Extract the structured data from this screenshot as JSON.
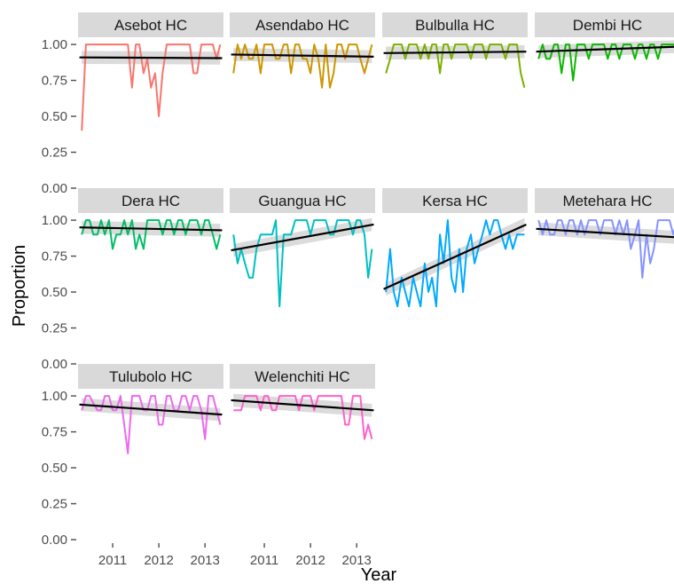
{
  "chart_data": {
    "type": "line",
    "xlabel": "Year",
    "ylabel": "Proportion",
    "x_ticks": [
      2011,
      2012,
      2013
    ],
    "x_tick_labels": [
      "2011",
      "2012",
      "2013"
    ],
    "y_ticks": [
      0,
      0.25,
      0.5,
      0.75,
      1.0
    ],
    "y_tick_labels": [
      "0.00",
      "0.25",
      "0.50",
      "0.75",
      "1.00"
    ],
    "xlim": [
      2010.25,
      2013.4
    ],
    "ylim": [
      0,
      1.05
    ],
    "grid": false,
    "legend": "none",
    "x": [
      2010.33,
      2010.42,
      2010.5,
      2010.58,
      2010.67,
      2010.75,
      2010.83,
      2010.92,
      2011.0,
      2011.08,
      2011.17,
      2011.25,
      2011.33,
      2011.42,
      2011.5,
      2011.58,
      2011.67,
      2011.75,
      2011.83,
      2011.92,
      2012.0,
      2012.08,
      2012.17,
      2012.25,
      2012.33,
      2012.42,
      2012.5,
      2012.58,
      2012.67,
      2012.75,
      2012.83,
      2012.92,
      2013.0,
      2013.08,
      2013.17,
      2013.25,
      2013.33
    ],
    "series": [
      {
        "name": "Asebot HC",
        "color": "#F8766D",
        "values": [
          0.4,
          1.0,
          1.0,
          1.0,
          1.0,
          1.0,
          1.0,
          1.0,
          1.0,
          1.0,
          1.0,
          1.0,
          1.0,
          0.7,
          1.0,
          1.0,
          0.8,
          0.9,
          0.7,
          0.8,
          0.5,
          0.8,
          1.0,
          1.0,
          1.0,
          1.0,
          1.0,
          1.0,
          1.0,
          0.8,
          0.8,
          1.0,
          1.0,
          1.0,
          1.0,
          0.9,
          1.0
        ],
        "trend": [
          0.91,
          0.905
        ]
      },
      {
        "name": "Asendabo HC",
        "color": "#CD9600",
        "values": [
          0.8,
          1.0,
          0.9,
          1.0,
          0.9,
          0.9,
          1.0,
          0.8,
          1.0,
          1.0,
          1.0,
          0.9,
          0.9,
          1.0,
          1.0,
          0.8,
          1.0,
          1.0,
          0.9,
          0.9,
          0.8,
          1.0,
          0.9,
          0.7,
          1.0,
          0.7,
          0.8,
          1.0,
          1.0,
          0.9,
          1.0,
          1.0,
          1.0,
          0.9,
          0.8,
          0.9,
          1.0
        ],
        "trend": [
          0.93,
          0.915
        ]
      },
      {
        "name": "Bulbulla HC",
        "color": "#7CAE00",
        "values": [
          0.8,
          0.9,
          1.0,
          1.0,
          1.0,
          0.9,
          1.0,
          1.0,
          1.0,
          0.9,
          1.0,
          0.9,
          1.0,
          1.0,
          0.8,
          1.0,
          1.0,
          0.9,
          1.0,
          1.0,
          1.0,
          1.0,
          0.9,
          1.0,
          1.0,
          1.0,
          0.9,
          1.0,
          1.0,
          1.0,
          1.0,
          0.9,
          1.0,
          1.0,
          1.0,
          0.8,
          0.7
        ],
        "trend": [
          0.94,
          0.95
        ]
      },
      {
        "name": "Dembi HC",
        "color": "#0CB702",
        "values": [
          0.9,
          1.0,
          0.9,
          0.9,
          1.0,
          1.0,
          0.8,
          1.0,
          1.0,
          0.75,
          1.0,
          1.0,
          1.0,
          0.9,
          1.0,
          1.0,
          1.0,
          1.0,
          0.9,
          1.0,
          1.0,
          0.9,
          1.0,
          1.0,
          1.0,
          0.9,
          1.0,
          1.0,
          0.9,
          1.0,
          1.0,
          0.9,
          1.0,
          1.0,
          1.0,
          1.0,
          1.0
        ],
        "trend": [
          0.95,
          0.985
        ]
      },
      {
        "name": "Dera HC",
        "color": "#00BE67",
        "values": [
          0.9,
          1.0,
          1.0,
          0.9,
          0.9,
          1.0,
          0.9,
          1.0,
          0.8,
          0.9,
          0.9,
          1.0,
          0.9,
          1.0,
          0.8,
          0.9,
          0.8,
          1.0,
          1.0,
          1.0,
          1.0,
          0.9,
          1.0,
          1.0,
          0.9,
          1.0,
          1.0,
          0.9,
          1.0,
          1.0,
          1.0,
          0.9,
          1.0,
          1.0,
          0.9,
          0.8,
          0.9
        ],
        "trend": [
          0.95,
          0.93
        ]
      },
      {
        "name": "Guangua HC",
        "color": "#00BFC4",
        "values": [
          0.9,
          0.7,
          0.8,
          0.7,
          0.6,
          0.6,
          0.8,
          0.9,
          0.9,
          0.9,
          0.9,
          1.0,
          0.4,
          0.9,
          0.9,
          0.9,
          1.0,
          1.0,
          1.0,
          1.0,
          0.9,
          1.0,
          1.0,
          1.0,
          1.0,
          0.9,
          0.9,
          1.0,
          1.0,
          1.0,
          1.0,
          0.9,
          1.0,
          1.0,
          0.9,
          0.6,
          0.8
        ],
        "trend": [
          0.79,
          0.97
        ]
      },
      {
        "name": "Kersa HC",
        "color": "#00A9FF",
        "values": [
          0.5,
          0.8,
          0.5,
          0.4,
          0.6,
          0.5,
          0.4,
          0.6,
          0.5,
          0.4,
          0.7,
          0.5,
          0.6,
          0.4,
          0.9,
          0.7,
          1.0,
          0.6,
          0.5,
          0.8,
          0.5,
          0.8,
          0.9,
          0.7,
          0.8,
          0.9,
          1.0,
          0.9,
          1.0,
          1.0,
          0.9,
          0.8,
          0.9,
          0.8,
          0.9,
          0.9,
          0.9
        ],
        "trend": [
          0.52,
          0.97
        ]
      },
      {
        "name": "Metehara HC",
        "color": "#8494FF",
        "values": [
          1.0,
          0.9,
          1.0,
          0.9,
          0.9,
          1.0,
          1.0,
          0.9,
          1.0,
          1.0,
          0.9,
          1.0,
          0.9,
          1.0,
          1.0,
          1.0,
          0.9,
          1.0,
          1.0,
          1.0,
          0.9,
          1.0,
          0.9,
          1.0,
          0.8,
          0.9,
          1.0,
          0.6,
          0.9,
          0.7,
          0.8,
          1.0,
          1.0,
          1.0,
          1.0,
          0.9,
          1.0
        ],
        "trend": [
          0.94,
          0.88
        ]
      },
      {
        "name": "Tulubolo HC",
        "color": "#ED68ED",
        "values": [
          0.9,
          1.0,
          1.0,
          0.95,
          0.9,
          0.9,
          1.0,
          1.0,
          0.9,
          0.9,
          1.0,
          0.8,
          0.6,
          1.0,
          1.0,
          1.0,
          0.9,
          0.9,
          1.0,
          1.0,
          0.8,
          0.8,
          1.0,
          1.0,
          0.9,
          0.9,
          1.0,
          1.0,
          0.9,
          1.0,
          1.0,
          0.9,
          0.7,
          1.0,
          1.0,
          0.9,
          0.8
        ],
        "trend": [
          0.94,
          0.87
        ]
      },
      {
        "name": "Welenchiti HC",
        "color": "#FF61CC",
        "values": [
          0.9,
          0.9,
          0.9,
          1.0,
          1.0,
          1.0,
          1.0,
          0.9,
          1.0,
          1.0,
          0.9,
          0.9,
          1.0,
          1.0,
          1.0,
          1.0,
          1.0,
          0.9,
          1.0,
          1.0,
          1.0,
          0.9,
          1.0,
          1.0,
          1.0,
          1.0,
          1.0,
          1.0,
          1.0,
          0.8,
          0.8,
          1.0,
          1.0,
          1.0,
          0.7,
          0.8,
          0.7
        ],
        "trend": [
          0.97,
          0.9
        ]
      }
    ]
  }
}
